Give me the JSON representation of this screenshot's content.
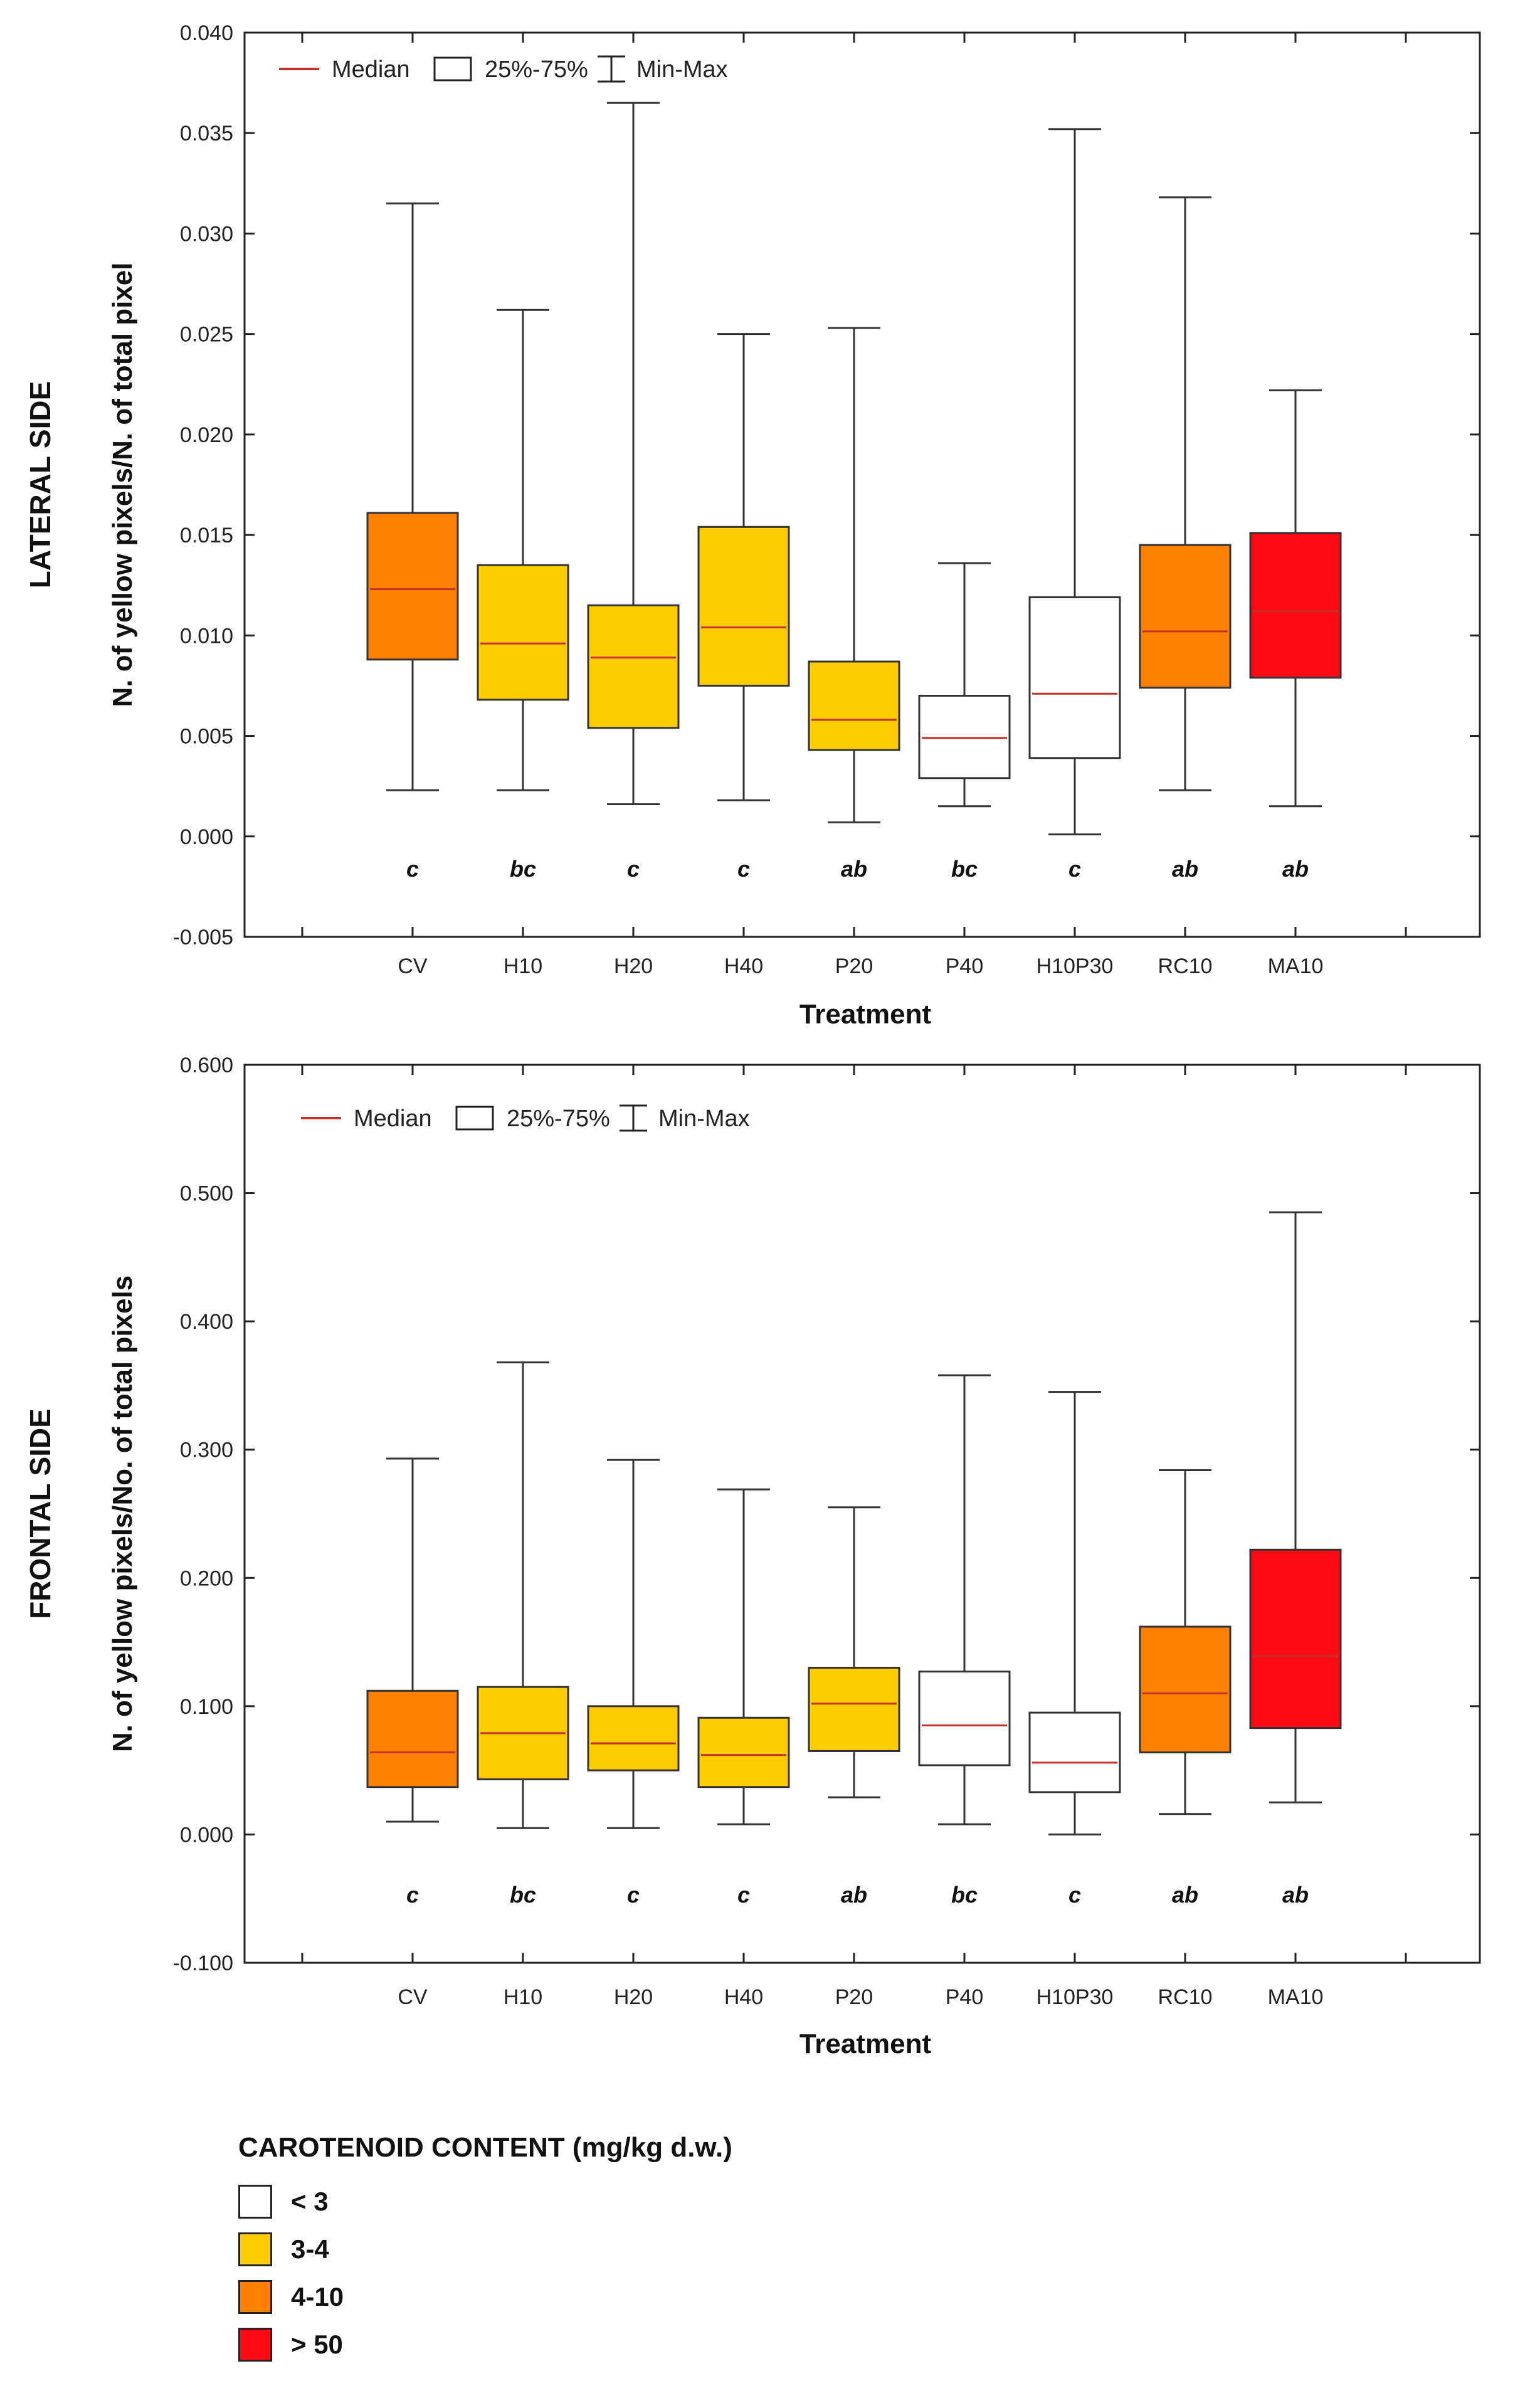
{
  "chart_data": [
    {
      "type": "box",
      "side_label": "LATERAL SIDE",
      "ylabel": "N. of yellow pixels/N. of total pixel",
      "xlabel": "Treatment",
      "ylim": [
        -0.005,
        0.04
      ],
      "yticks": [
        -0.005,
        0.0,
        0.005,
        0.01,
        0.015,
        0.02,
        0.025,
        0.03,
        0.035,
        0.04
      ],
      "ytick_labels": [
        "-0.005",
        "0.000",
        "0.005",
        "0.010",
        "0.015",
        "0.020",
        "0.025",
        "0.030",
        "0.035",
        "0.040"
      ],
      "legend": {
        "median": "Median",
        "box": "25%-75%",
        "whisker": "Min-Max"
      },
      "boxes": [
        {
          "category": "CV",
          "min": 0.0023,
          "q1": 0.0088,
          "median": 0.0123,
          "q3": 0.0161,
          "max": 0.0315,
          "class": "4-10",
          "sig": "c"
        },
        {
          "category": "H10",
          "min": 0.0023,
          "q1": 0.0068,
          "median": 0.0096,
          "q3": 0.0135,
          "max": 0.0262,
          "class": "3-4",
          "sig": "bc"
        },
        {
          "category": "H20",
          "min": 0.0016,
          "q1": 0.0054,
          "median": 0.0089,
          "q3": 0.0115,
          "max": 0.0365,
          "class": "3-4",
          "sig": "c"
        },
        {
          "category": "H40",
          "min": 0.0018,
          "q1": 0.0075,
          "median": 0.0104,
          "q3": 0.0154,
          "max": 0.025,
          "class": "3-4",
          "sig": "c"
        },
        {
          "category": "P20",
          "min": 0.0007,
          "q1": 0.0043,
          "median": 0.0058,
          "q3": 0.0087,
          "max": 0.0253,
          "class": "3-4",
          "sig": "ab"
        },
        {
          "category": "P40",
          "min": 0.0015,
          "q1": 0.0029,
          "median": 0.0049,
          "q3": 0.007,
          "max": 0.0136,
          "class": "<3",
          "sig": "bc"
        },
        {
          "category": "H10P30",
          "min": 0.0001,
          "q1": 0.0039,
          "median": 0.0071,
          "q3": 0.0119,
          "max": 0.0352,
          "class": "<3",
          "sig": "c"
        },
        {
          "category": "RC10",
          "min": 0.0023,
          "q1": 0.0074,
          "median": 0.0102,
          "q3": 0.0145,
          "max": 0.0318,
          "class": "4-10",
          "sig": "ab"
        },
        {
          "category": "MA10",
          "min": 0.0015,
          "q1": 0.0079,
          "median": 0.0112,
          "q3": 0.0151,
          "max": 0.0222,
          "class": ">50",
          "sig": "ab"
        }
      ]
    },
    {
      "type": "box",
      "side_label": "FRONTAL SIDE",
      "ylabel": "N. of yellow pixels/No. of total pixels",
      "xlabel": "Treatment",
      "ylim": [
        -0.1,
        0.6
      ],
      "yticks": [
        -0.1,
        0.0,
        0.1,
        0.2,
        0.3,
        0.4,
        0.5,
        0.6
      ],
      "ytick_labels": [
        "-0.100",
        "0.000",
        "0.100",
        "0.200",
        "0.300",
        "0.400",
        "0.500",
        "0.600"
      ],
      "legend": {
        "median": "Median",
        "box": "25%-75%",
        "whisker": "Min-Max"
      },
      "boxes": [
        {
          "category": "CV",
          "min": 0.01,
          "q1": 0.037,
          "median": 0.064,
          "q3": 0.112,
          "max": 0.293,
          "class": "4-10",
          "sig": "c"
        },
        {
          "category": "H10",
          "min": 0.005,
          "q1": 0.043,
          "median": 0.079,
          "q3": 0.115,
          "max": 0.368,
          "class": "3-4",
          "sig": "bc"
        },
        {
          "category": "H20",
          "min": 0.005,
          "q1": 0.05,
          "median": 0.071,
          "q3": 0.1,
          "max": 0.292,
          "class": "3-4",
          "sig": "c"
        },
        {
          "category": "H40",
          "min": 0.008,
          "q1": 0.037,
          "median": 0.062,
          "q3": 0.091,
          "max": 0.269,
          "class": "3-4",
          "sig": "c"
        },
        {
          "category": "P20",
          "min": 0.029,
          "q1": 0.065,
          "median": 0.102,
          "q3": 0.13,
          "max": 0.255,
          "class": "3-4",
          "sig": "ab"
        },
        {
          "category": "P40",
          "min": 0.008,
          "q1": 0.054,
          "median": 0.085,
          "q3": 0.127,
          "max": 0.358,
          "class": "<3",
          "sig": "bc"
        },
        {
          "category": "H10P30",
          "min": 0.0,
          "q1": 0.033,
          "median": 0.056,
          "q3": 0.095,
          "max": 0.345,
          "class": "<3",
          "sig": "c"
        },
        {
          "category": "RC10",
          "min": 0.016,
          "q1": 0.064,
          "median": 0.11,
          "q3": 0.162,
          "max": 0.284,
          "class": "4-10",
          "sig": "ab"
        },
        {
          "category": "MA10",
          "min": 0.025,
          "q1": 0.083,
          "median": 0.139,
          "q3": 0.222,
          "max": 0.485,
          "class": ">50",
          "sig": "ab"
        }
      ]
    }
  ],
  "carotenoid_legend": {
    "title": "CAROTENOID CONTENT (mg/kg d.w.)",
    "items": [
      {
        "key": "<3",
        "label": "< 3",
        "color": "#ffffff"
      },
      {
        "key": "3-4",
        "label": "3-4",
        "color": "#ffcc00"
      },
      {
        "key": "4-10",
        "label": "4-10",
        "color": "#ff8000"
      },
      {
        "key": ">50",
        "label": "> 50",
        "color": "#ff0a14"
      }
    ]
  }
}
